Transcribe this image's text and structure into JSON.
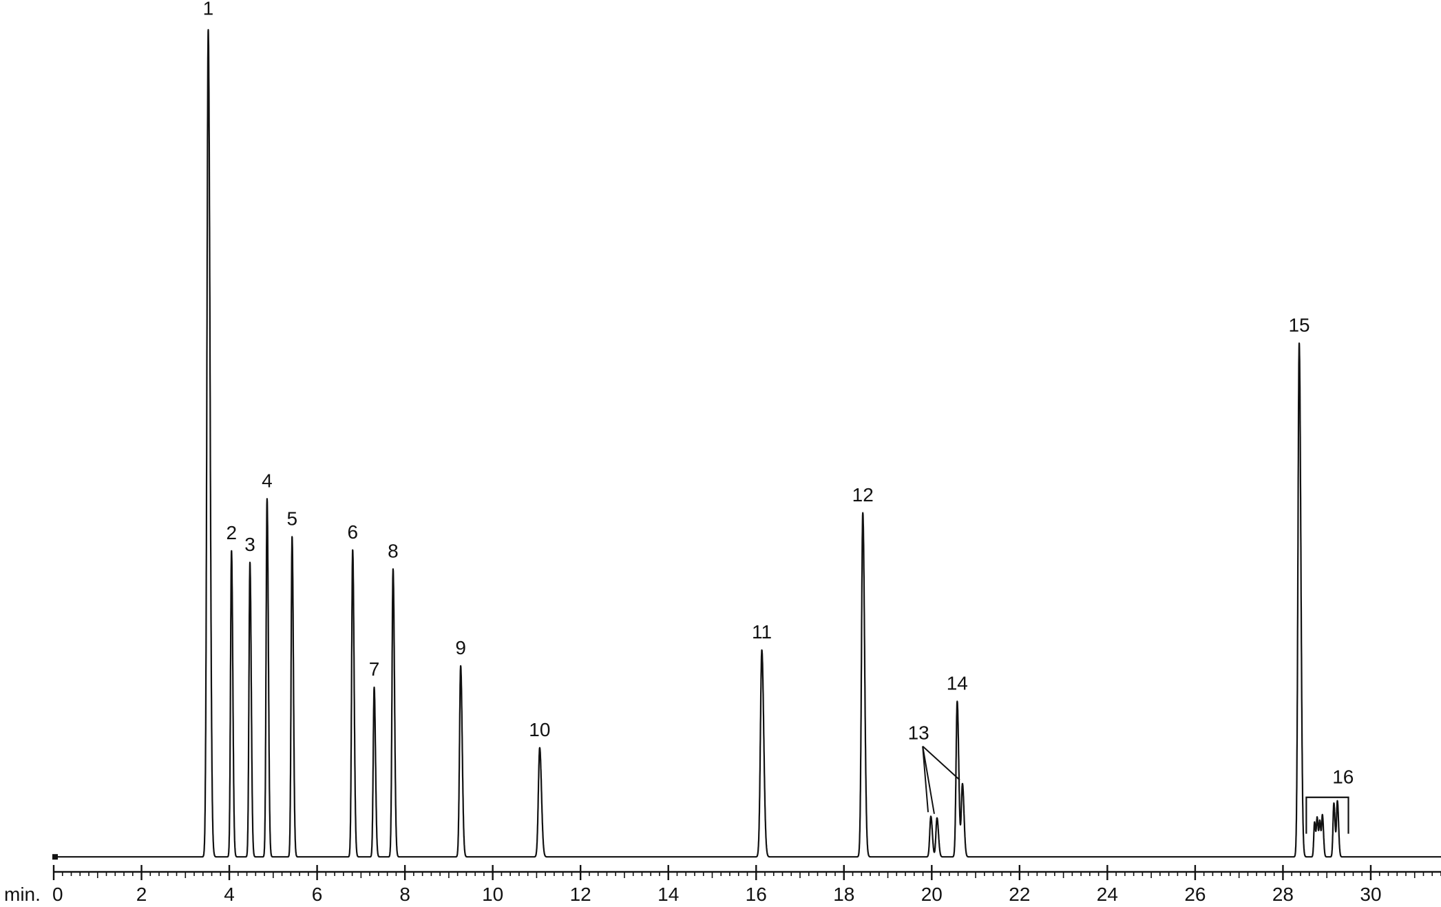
{
  "chart_data": {
    "type": "line",
    "title": "",
    "xlabel": "min.",
    "ylabel": "",
    "xlim": [
      0,
      31.6
    ],
    "ylim": [
      0,
      100
    ],
    "grid": false,
    "legend": "none",
    "major_ticks": [
      0,
      2,
      4,
      6,
      8,
      10,
      12,
      14,
      16,
      18,
      20,
      22,
      24,
      26,
      28,
      30
    ],
    "tick_labels": [
      "0",
      "2",
      "4",
      "6",
      "8",
      "10",
      "12",
      "14",
      "16",
      "18",
      "20",
      "22",
      "24",
      "26",
      "28",
      "30"
    ],
    "minor_tick_step": 0.2,
    "line_color": "#111111",
    "baseline": 0.4,
    "peaks": [
      {
        "label": "1",
        "rt": 3.52,
        "height": 100,
        "width": 0.03
      },
      {
        "label": "2",
        "rt": 4.05,
        "height": 37,
        "width": 0.022
      },
      {
        "label": "3",
        "rt": 4.47,
        "height": 35.6,
        "width": 0.022
      },
      {
        "label": "4",
        "rt": 4.86,
        "height": 43.3,
        "width": 0.022
      },
      {
        "label": "5",
        "rt": 5.43,
        "height": 38.7,
        "width": 0.022
      },
      {
        "label": "6",
        "rt": 6.81,
        "height": 37.1,
        "width": 0.024
      },
      {
        "label": "7",
        "rt": 7.3,
        "height": 20.5,
        "width": 0.022
      },
      {
        "label": "8",
        "rt": 7.73,
        "height": 34.8,
        "width": 0.024
      },
      {
        "label": "9",
        "rt": 9.27,
        "height": 23.1,
        "width": 0.026
      },
      {
        "label": "10",
        "rt": 11.07,
        "height": 13.2,
        "width": 0.03
      },
      {
        "label": "11",
        "rt": 16.13,
        "height": 25,
        "width": 0.032
      },
      {
        "label": "12",
        "rt": 18.43,
        "height": 41.6,
        "width": 0.03
      },
      {
        "label": "13",
        "rt": 19.98,
        "height": 4.9,
        "width": 0.025
      },
      {
        "label": "13",
        "rt": 20.12,
        "height": 4.7,
        "width": 0.025
      },
      {
        "label": "14",
        "rt": 20.58,
        "height": 18.8,
        "width": 0.026
      },
      {
        "label": "13",
        "rt": 20.7,
        "height": 8.8,
        "width": 0.026
      },
      {
        "label": "15",
        "rt": 28.37,
        "height": 62.1,
        "width": 0.028
      },
      {
        "label": "16",
        "rt": 28.72,
        "height": 4.2,
        "width": 0.018
      },
      {
        "label": "16",
        "rt": 28.78,
        "height": 4.6,
        "width": 0.018
      },
      {
        "label": "16",
        "rt": 28.84,
        "height": 4.2,
        "width": 0.018
      },
      {
        "label": "16",
        "rt": 28.9,
        "height": 4.9,
        "width": 0.018
      },
      {
        "label": "16",
        "rt": 29.16,
        "height": 6.5,
        "width": 0.02
      },
      {
        "label": "16",
        "rt": 29.24,
        "height": 6.7,
        "width": 0.02
      }
    ],
    "annotations": [
      {
        "text": "1",
        "x": 3.52,
        "y": 102.2,
        "target": "peak"
      },
      {
        "text": "2",
        "x": 4.05,
        "y": 38.8,
        "target": "peak"
      },
      {
        "text": "3",
        "x": 4.47,
        "y": 37.4,
        "target": "peak"
      },
      {
        "text": "4",
        "x": 4.86,
        "y": 45.1,
        "target": "peak"
      },
      {
        "text": "5",
        "x": 5.43,
        "y": 40.5,
        "target": "peak"
      },
      {
        "text": "6",
        "x": 6.81,
        "y": 38.9,
        "target": "peak"
      },
      {
        "text": "7",
        "x": 7.3,
        "y": 22.3,
        "target": "peak"
      },
      {
        "text": "8",
        "x": 7.73,
        "y": 36.6,
        "target": "peak"
      },
      {
        "text": "9",
        "x": 9.27,
        "y": 24.9,
        "target": "peak"
      },
      {
        "text": "10",
        "x": 11.07,
        "y": 15.0,
        "target": "peak"
      },
      {
        "text": "11",
        "x": 16.13,
        "y": 26.8,
        "target": "peak"
      },
      {
        "text": "12",
        "x": 18.43,
        "y": 43.4,
        "target": "peak"
      },
      {
        "text": "13",
        "x": 19.7,
        "y": 14.6,
        "target": "group"
      },
      {
        "text": "14",
        "x": 20.58,
        "y": 20.6,
        "target": "peak"
      },
      {
        "text": "15",
        "x": 28.37,
        "y": 63.9,
        "target": "peak"
      },
      {
        "text": "16",
        "x": 29.37,
        "y": 9.3,
        "target": "group"
      }
    ]
  }
}
